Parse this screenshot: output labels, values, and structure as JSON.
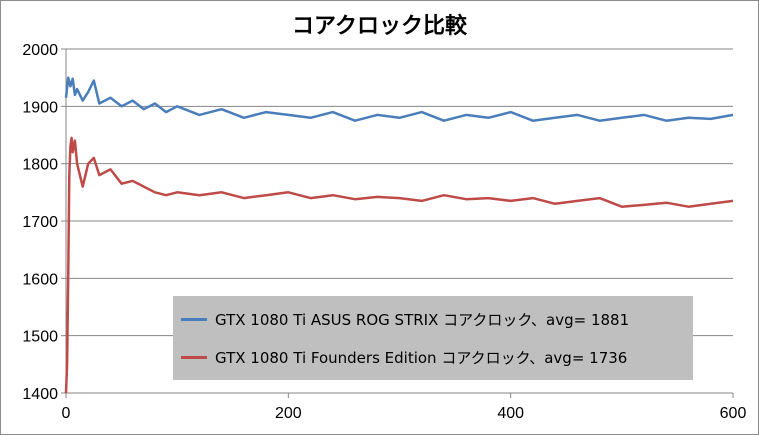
{
  "chart_data": {
    "type": "line",
    "title": "コアクロック比較",
    "xlim": [
      0,
      600
    ],
    "ylim": [
      1400,
      2000
    ],
    "x_ticks": [
      0,
      200,
      400,
      600
    ],
    "y_ticks": [
      1400,
      1500,
      1600,
      1700,
      1800,
      1900,
      2000
    ],
    "grid": "horizontal",
    "legend_position": "bottom-right",
    "series": [
      {
        "name": "GTX 1080 Ti ASUS ROG STRIX コアクロック、avg= 1881",
        "color": "#4a7ebb",
        "x": [
          0,
          2,
          4,
          6,
          8,
          10,
          15,
          20,
          25,
          30,
          40,
          50,
          60,
          70,
          80,
          90,
          100,
          120,
          140,
          160,
          180,
          200,
          220,
          240,
          260,
          280,
          300,
          320,
          340,
          360,
          380,
          400,
          420,
          440,
          460,
          480,
          500,
          520,
          540,
          560,
          580,
          600
        ],
        "y": [
          1915,
          1950,
          1935,
          1948,
          1920,
          1930,
          1910,
          1925,
          1945,
          1905,
          1915,
          1900,
          1910,
          1895,
          1905,
          1890,
          1900,
          1885,
          1895,
          1880,
          1890,
          1885,
          1880,
          1890,
          1875,
          1885,
          1880,
          1890,
          1875,
          1885,
          1880,
          1890,
          1875,
          1880,
          1885,
          1875,
          1880,
          1885,
          1875,
          1880,
          1878,
          1885
        ]
      },
      {
        "name": "GTX 1080 Ti Founders Edition コアクロック、avg= 1736",
        "color": "#be4b48",
        "x": [
          0,
          1,
          2,
          3,
          4,
          5,
          6,
          8,
          10,
          15,
          20,
          25,
          30,
          40,
          50,
          60,
          70,
          80,
          90,
          100,
          120,
          140,
          160,
          180,
          200,
          220,
          240,
          260,
          280,
          300,
          320,
          340,
          360,
          380,
          400,
          420,
          440,
          460,
          480,
          500,
          520,
          540,
          560,
          580,
          600
        ],
        "y": [
          1400,
          1450,
          1600,
          1780,
          1830,
          1845,
          1820,
          1840,
          1800,
          1760,
          1800,
          1810,
          1780,
          1790,
          1765,
          1770,
          1760,
          1750,
          1745,
          1750,
          1745,
          1750,
          1740,
          1745,
          1750,
          1740,
          1745,
          1738,
          1742,
          1740,
          1735,
          1745,
          1738,
          1740,
          1735,
          1740,
          1730,
          1735,
          1740,
          1725,
          1728,
          1732,
          1725,
          1730,
          1735
        ]
      }
    ]
  }
}
